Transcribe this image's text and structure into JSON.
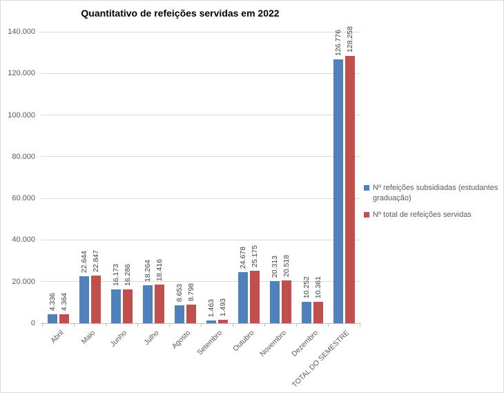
{
  "chart_data": {
    "type": "bar",
    "title": "Quantitativo de refeições servidas em 2022",
    "categories": [
      "Abril",
      "Maio",
      "Junho",
      "Julho",
      "Agosto",
      "Setembro",
      "Outubro",
      "Novembro",
      "Dezembro",
      "TOTAL DO SEMESTRE"
    ],
    "series": [
      {
        "name": "Nº refeições subsidiadas (estudantes graduação)",
        "color": "#4F81BD",
        "values": [
          4336,
          22644,
          16173,
          18264,
          8653,
          1463,
          24678,
          20313,
          10252,
          126776
        ],
        "labels": [
          "4.336",
          "22.644",
          "16.173",
          "18.264",
          "8.653",
          "1.463",
          "24.678",
          "20.313",
          "10.252",
          "126.776"
        ]
      },
      {
        "name": "Nº total de refeições servidas",
        "color": "#C0504D",
        "values": [
          4364,
          22847,
          16286,
          18416,
          8798,
          1493,
          25175,
          20518,
          10361,
          128258
        ],
        "labels": [
          "4.364",
          "22.847",
          "16.286",
          "18.416",
          "8.798",
          "1.493",
          "25.175",
          "20.518",
          "10.361",
          "128.258"
        ]
      }
    ],
    "ylim": [
      0,
      140000
    ],
    "yticks": [
      {
        "value": 0,
        "label": "0"
      },
      {
        "value": 20000,
        "label": "20.000"
      },
      {
        "value": 40000,
        "label": "40.000"
      },
      {
        "value": 60000,
        "label": "60.000"
      },
      {
        "value": 80000,
        "label": "80.000"
      },
      {
        "value": 100000,
        "label": "100.000"
      },
      {
        "value": 120000,
        "label": "120.000"
      },
      {
        "value": 140000,
        "label": "140.000"
      }
    ],
    "grid": true,
    "legend_position": "right",
    "colors": {
      "gridline": "#d9d9d9",
      "axis": "#bfbfbf",
      "axis_text": "#595959",
      "data_label_text": "#404040",
      "title_text": "#000000"
    }
  }
}
